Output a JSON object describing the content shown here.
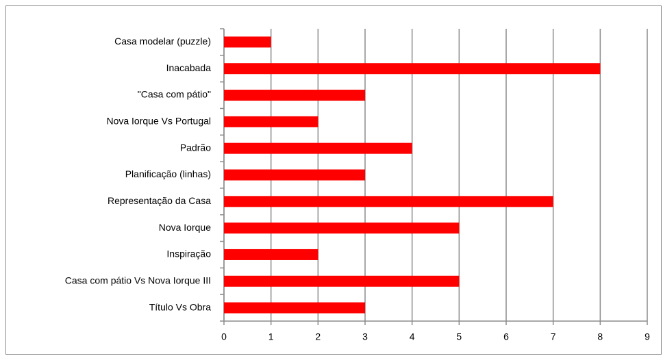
{
  "chart_data": {
    "type": "bar",
    "orientation": "horizontal",
    "categories": [
      "Casa modelar (puzzle)",
      "Inacabada",
      "\"Casa com pátio\"",
      "Nova Iorque Vs Portugal",
      "Padrão",
      "Planificação (linhas)",
      "Representação da Casa",
      "Nova Iorque",
      "Inspiração",
      "Casa com pátio Vs Nova Iorque III",
      "Título Vs Obra"
    ],
    "values": [
      1,
      8,
      3,
      2,
      4,
      3,
      7,
      5,
      2,
      5,
      3
    ],
    "color": "#ff0000",
    "xlim": [
      0,
      9
    ],
    "xticks": [
      0,
      1,
      2,
      3,
      4,
      5,
      6,
      7,
      8,
      9
    ],
    "grid": true
  }
}
